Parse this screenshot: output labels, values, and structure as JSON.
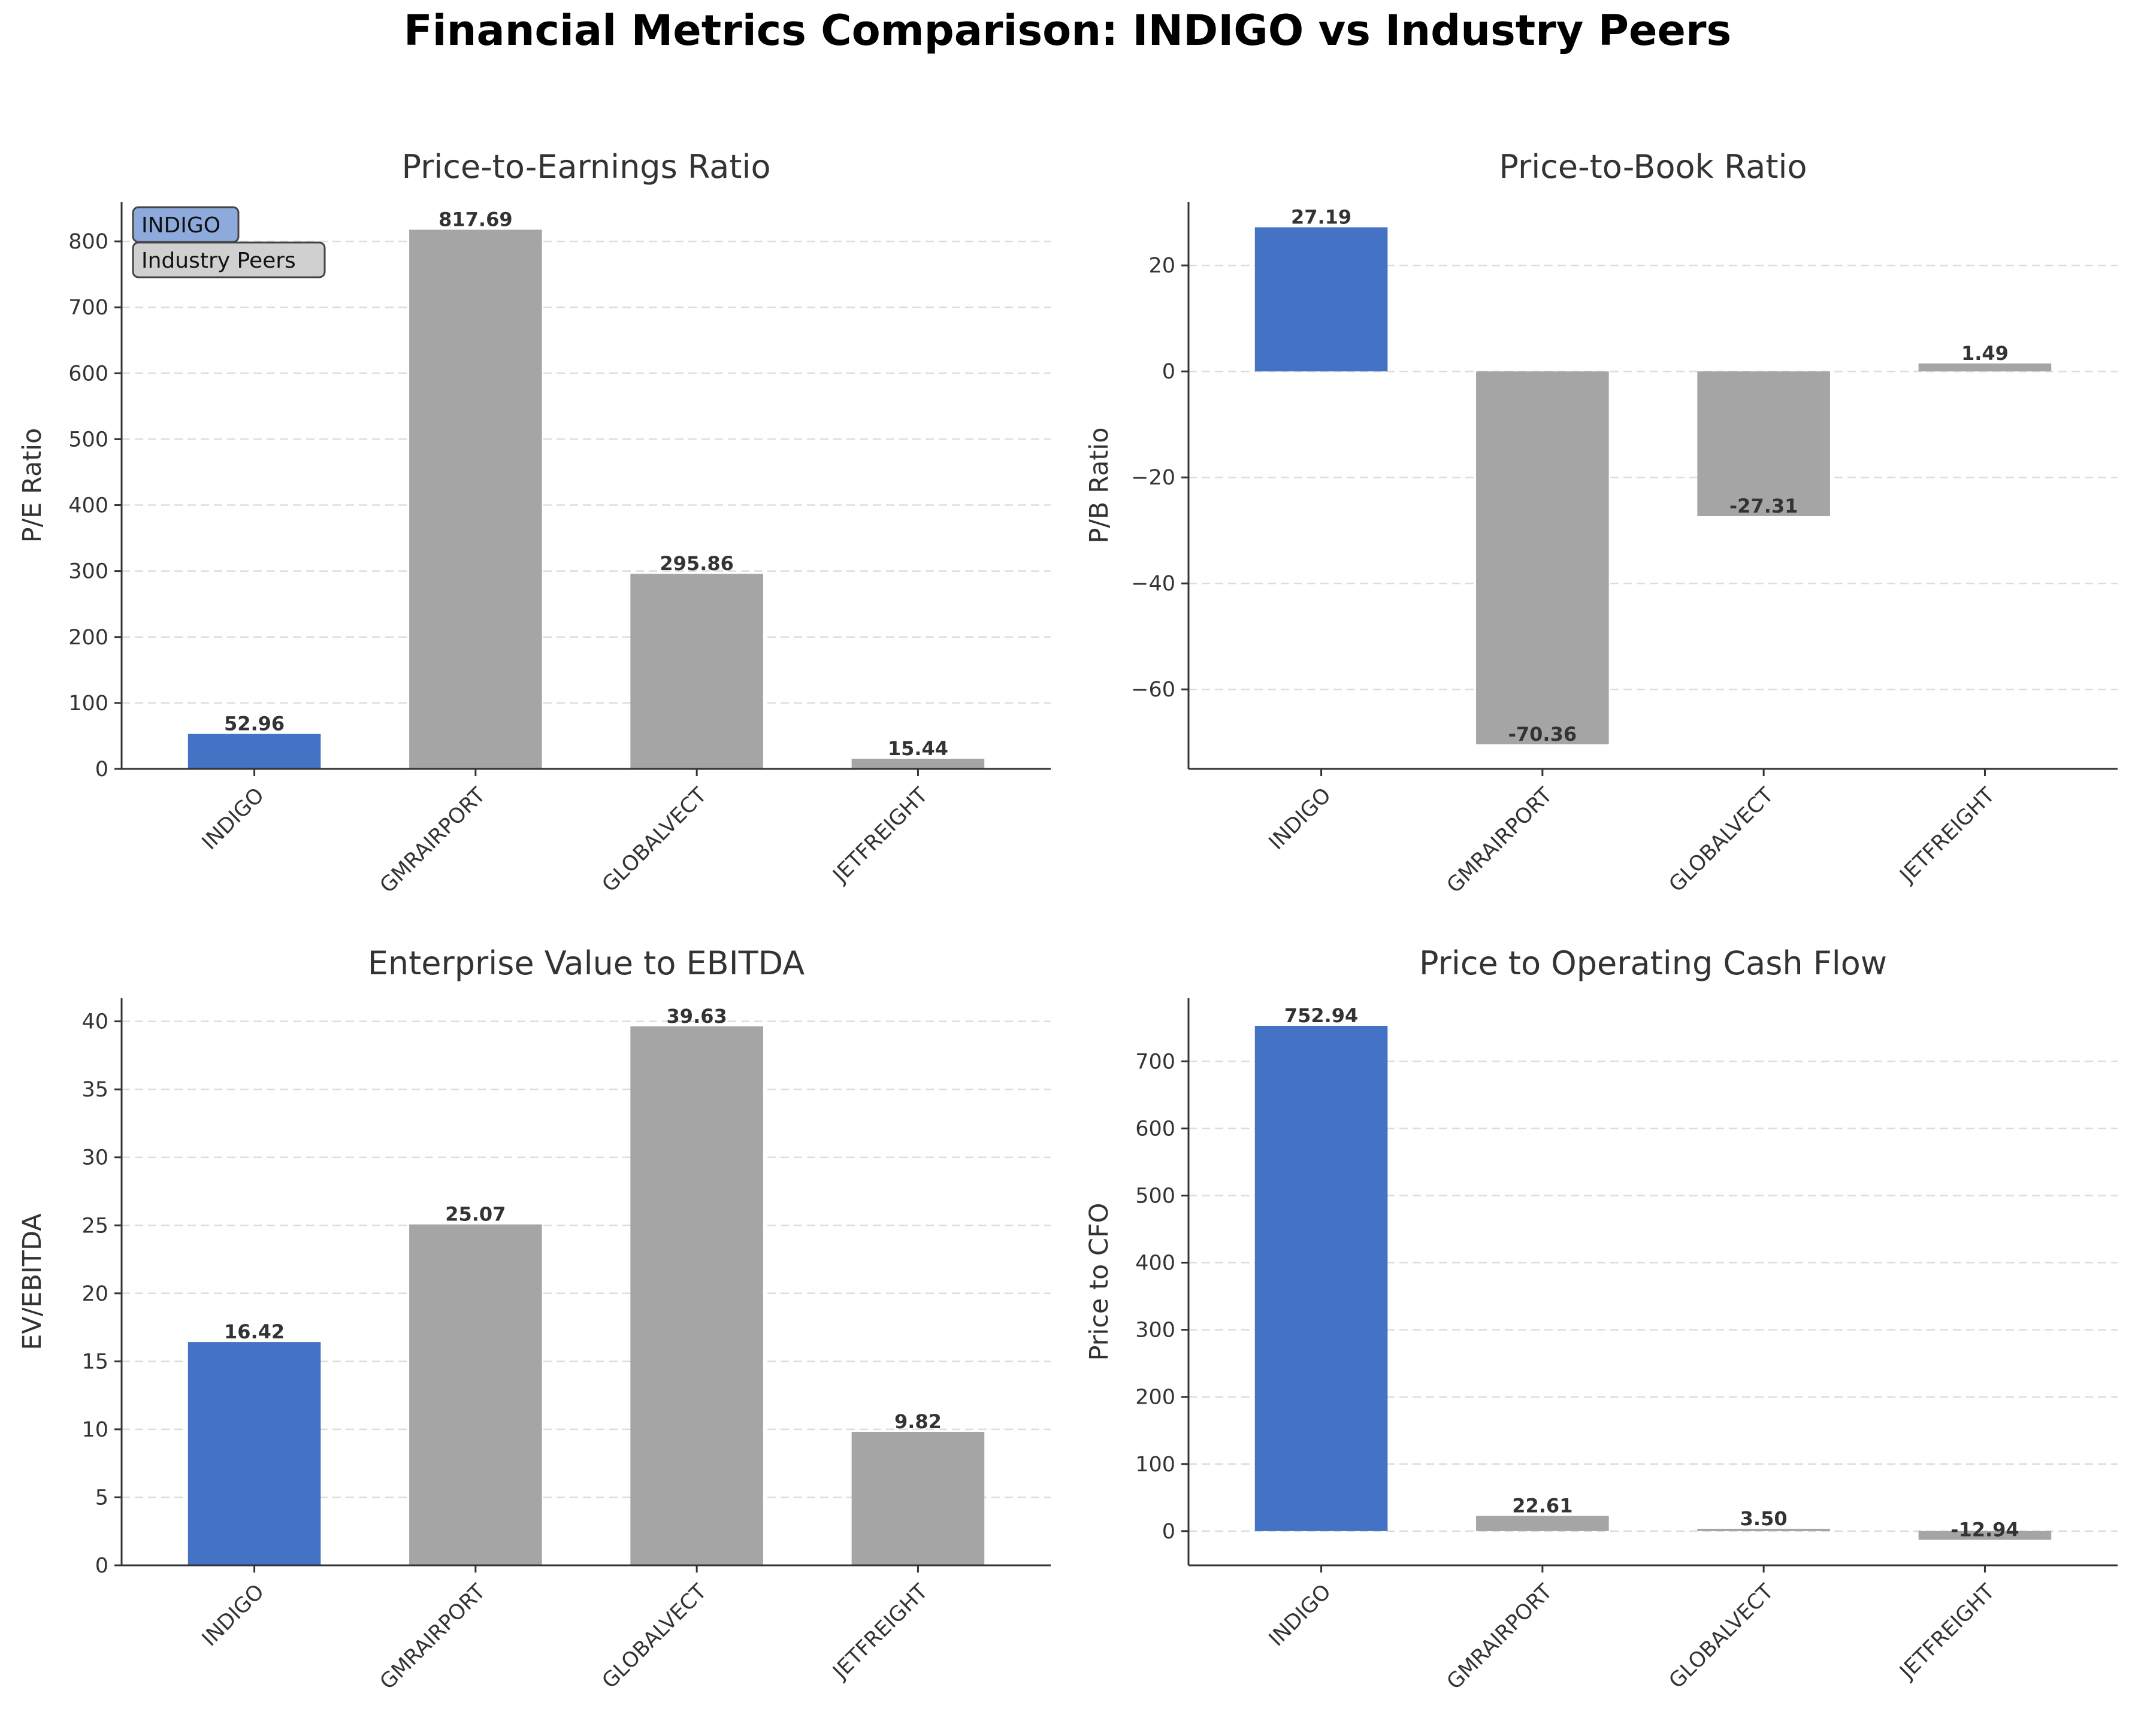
{
  "figure": {
    "title": "Financial Metrics Comparison: INDIGO vs Industry Peers"
  },
  "colors": {
    "highlight": "#4472c4",
    "peer": "#a5a5a5",
    "legend_highlight_bg": "#8ea9db",
    "legend_peer_bg": "#d0d0d0",
    "axis": "#333333",
    "grid": "#dddddd",
    "label_text": "#333333"
  },
  "legend": {
    "placement": "upper-left of first panel",
    "items": [
      {
        "label": "INDIGO",
        "color_key": "legend_highlight_bg"
      },
      {
        "label": "Industry Peers",
        "color_key": "legend_peer_bg"
      }
    ]
  },
  "chart_data": [
    {
      "type": "bar",
      "title": "Price-to-Earnings Ratio",
      "xlabel": "",
      "ylabel": "P/E Ratio",
      "categories": [
        "INDIGO",
        "GMRAIRPORT",
        "GLOBALVECT",
        "JETFREIGHT"
      ],
      "values": [
        52.96,
        817.69,
        295.86,
        15.44
      ],
      "value_labels": [
        "52.96",
        "817.69",
        "295.86",
        "15.44"
      ],
      "ylim": [
        0,
        860
      ],
      "yticks": [
        0,
        100,
        200,
        300,
        400,
        500,
        600,
        700,
        800
      ],
      "ytick_labels": [
        "0",
        "100",
        "200",
        "300",
        "400",
        "500",
        "600",
        "700",
        "800"
      ],
      "grid": "horizontal dashed",
      "highlight_index": 0
    },
    {
      "type": "bar",
      "title": "Price-to-Book Ratio",
      "xlabel": "",
      "ylabel": "P/B Ratio",
      "categories": [
        "INDIGO",
        "GMRAIRPORT",
        "GLOBALVECT",
        "JETFREIGHT"
      ],
      "values": [
        27.19,
        -70.36,
        -27.31,
        1.49
      ],
      "value_labels": [
        "27.19",
        "-70.36",
        "-27.31",
        "1.49"
      ],
      "ylim": [
        -75,
        32
      ],
      "yticks": [
        -60,
        -40,
        -20,
        0,
        20
      ],
      "ytick_labels": [
        "−60",
        "−40",
        "−20",
        "0",
        "20"
      ],
      "grid": "horizontal dashed",
      "highlight_index": 0
    },
    {
      "type": "bar",
      "title": "Enterprise Value to EBITDA",
      "xlabel": "",
      "ylabel": "EV/EBITDA",
      "categories": [
        "INDIGO",
        "GMRAIRPORT",
        "GLOBALVECT",
        "JETFREIGHT"
      ],
      "values": [
        16.42,
        25.07,
        39.63,
        9.82
      ],
      "value_labels": [
        "16.42",
        "25.07",
        "39.63",
        "9.82"
      ],
      "ylim": [
        0,
        41.7
      ],
      "yticks": [
        0,
        5,
        10,
        15,
        20,
        25,
        30,
        35,
        40
      ],
      "ytick_labels": [
        "0",
        "5",
        "10",
        "15",
        "20",
        "25",
        "30",
        "35",
        "40"
      ],
      "grid": "horizontal dashed",
      "highlight_index": 0
    },
    {
      "type": "bar",
      "title": "Price to Operating Cash Flow",
      "xlabel": "",
      "ylabel": "Price to CFO",
      "categories": [
        "INDIGO",
        "GMRAIRPORT",
        "GLOBALVECT",
        "JETFREIGHT"
      ],
      "values": [
        752.94,
        22.61,
        3.5,
        -12.94
      ],
      "value_labels": [
        "752.94",
        "22.61",
        "3.50",
        "-12.94"
      ],
      "ylim": [
        -51,
        794
      ],
      "yticks": [
        0,
        100,
        200,
        300,
        400,
        500,
        600,
        700
      ],
      "ytick_labels": [
        "0",
        "100",
        "200",
        "300",
        "400",
        "500",
        "600",
        "700"
      ],
      "grid": "horizontal dashed",
      "highlight_index": 0
    }
  ]
}
